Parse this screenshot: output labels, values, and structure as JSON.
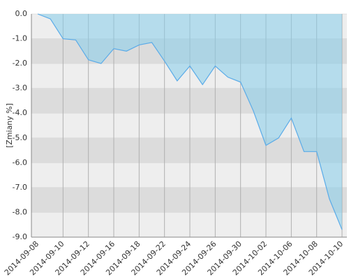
{
  "chart_data": {
    "type": "area",
    "y_label": "[Zmiany %]",
    "categories": [
      "2014-09-08",
      null,
      "2014-09-10",
      null,
      "2014-09-12",
      null,
      "2014-09-16",
      null,
      "2014-09-18",
      null,
      "2014-09-22",
      null,
      "2014-09-24",
      null,
      "2014-09-26",
      null,
      "2014-09-30",
      null,
      "2014-10-02",
      null,
      "2014-10-06",
      null,
      "2014-10-08",
      null,
      "2014-10-10"
    ],
    "series": [
      {
        "color": "#5aabe8",
        "values": [
          0.0,
          -0.2,
          -1.0,
          -1.05,
          -1.85,
          -2.0,
          -1.4,
          -1.5,
          -1.25,
          -1.15,
          -1.9,
          -2.7,
          -2.1,
          -2.85,
          -2.1,
          -2.55,
          -2.75,
          -3.9,
          -5.3,
          -5.0,
          -4.2,
          -5.55,
          -5.55,
          -7.45,
          -8.7
        ]
      }
    ],
    "ylim": [
      -9,
      0
    ],
    "yticks": [
      {
        "value": 0,
        "label": "0.0"
      },
      {
        "value": -1,
        "label": "-1.0"
      },
      {
        "value": -2,
        "label": "-2.0"
      },
      {
        "value": -3,
        "label": "-3.0"
      },
      {
        "value": -4,
        "label": "-4.0"
      },
      {
        "value": -5,
        "label": "-5.0"
      },
      {
        "value": -6,
        "label": "-6.0"
      },
      {
        "value": -7,
        "label": "-7.0"
      },
      {
        "value": -8,
        "label": "-8.0"
      },
      {
        "value": -9,
        "label": "-9.0"
      }
    ],
    "grid": true
  }
}
